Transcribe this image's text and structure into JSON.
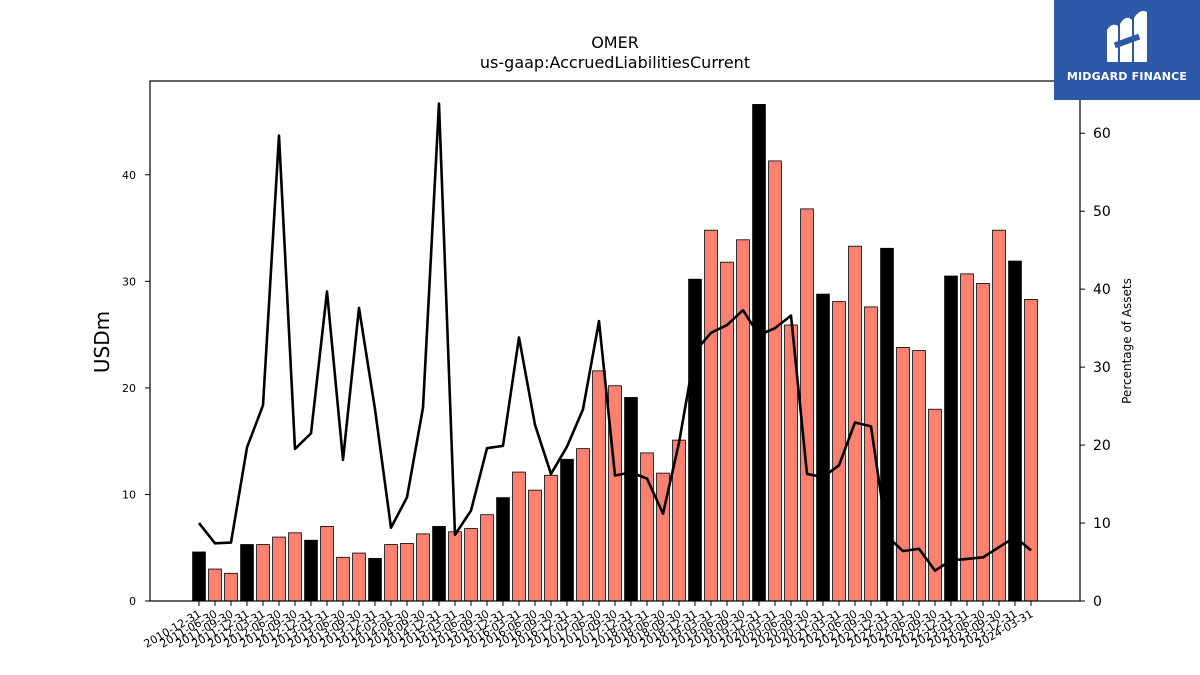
{
  "chart_data": {
    "type": "bar",
    "title": "OMER",
    "subtitle": "us-gaap:AccruedLiabilitiesCurrent",
    "ylabel": "USDm",
    "y2label": "Percentage of Assets",
    "ylim": [
      0,
      48.8
    ],
    "y2lim": [
      0,
      66.7
    ],
    "yticks": [
      0,
      10,
      20,
      30,
      40
    ],
    "y2ticks": [
      0,
      10,
      20,
      30,
      40,
      50,
      60
    ],
    "legend": "none",
    "grid": false,
    "categories": [
      "2010-12-31",
      "2011-06-30",
      "2011-09-30",
      "2011-12-31",
      "2012-03-31",
      "2012-06-30",
      "2012-09-30",
      "2012-12-31",
      "2013-03-31",
      "2013-06-30",
      "2013-09-30",
      "2013-12-31",
      "2014-03-31",
      "2014-06-30",
      "2014-09-30",
      "2014-12-31",
      "2015-03-31",
      "2015-06-30",
      "2015-09-30",
      "2015-12-31",
      "2016-03-31",
      "2016-06-30",
      "2016-09-30",
      "2016-12-31",
      "2017-03-31",
      "2017-06-30",
      "2017-09-30",
      "2017-12-31",
      "2018-03-31",
      "2018-06-30",
      "2018-09-30",
      "2018-12-31",
      "2019-03-31",
      "2019-06-30",
      "2019-09-30",
      "2019-12-31",
      "2020-03-31",
      "2020-06-30",
      "2020-09-30",
      "2020-12-31",
      "2021-03-31",
      "2021-06-30",
      "2021-09-30",
      "2021-12-31",
      "2022-03-31",
      "2022-06-30",
      "2022-09-30",
      "2022-12-31",
      "2023-03-31",
      "2023-06-30",
      "2023-09-30",
      "2023-12-31",
      "2024-03-31"
    ],
    "series": [
      {
        "kind": "bar",
        "values": [
          4.6,
          3.0,
          2.6,
          5.3,
          5.3,
          6.0,
          6.4,
          5.7,
          7.0,
          4.1,
          4.5,
          4.0,
          5.3,
          5.4,
          6.3,
          7.0,
          6.5,
          6.8,
          8.1,
          9.7,
          12.1,
          10.4,
          11.8,
          13.3,
          14.3,
          21.6,
          20.2,
          19.1,
          13.9,
          12.0,
          15.1,
          30.2,
          34.8,
          31.8,
          33.9,
          46.6,
          41.3,
          25.9,
          36.8,
          28.8,
          28.1,
          33.3,
          27.6,
          33.1,
          23.8,
          23.5,
          18.0,
          30.5,
          30.7,
          29.8,
          34.8,
          31.9,
          28.3
        ],
        "highlight": [
          true,
          false,
          false,
          true,
          false,
          false,
          false,
          true,
          false,
          false,
          false,
          true,
          false,
          false,
          false,
          true,
          false,
          false,
          false,
          true,
          false,
          false,
          false,
          true,
          false,
          false,
          false,
          true,
          false,
          false,
          false,
          true,
          false,
          false,
          false,
          true,
          false,
          false,
          false,
          true,
          false,
          false,
          false,
          true,
          false,
          false,
          false,
          true,
          false,
          false,
          false,
          true,
          false
        ]
      },
      {
        "kind": "line",
        "axis": "right",
        "values": [
          10.0,
          7.4,
          7.5,
          19.7,
          25.1,
          59.7,
          19.5,
          21.5,
          39.7,
          18.1,
          37.6,
          24.6,
          9.4,
          13.3,
          24.8,
          63.8,
          8.5,
          11.6,
          19.6,
          19.9,
          33.8,
          22.6,
          16.3,
          19.8,
          24.6,
          35.9,
          16.1,
          16.5,
          15.7,
          11.2,
          20.3,
          32.0,
          34.4,
          35.4,
          37.3,
          34.1,
          35.0,
          36.6,
          16.3,
          15.9,
          17.4,
          22.9,
          22.4,
          8.3,
          6.4,
          6.7,
          3.9,
          5.2,
          5.4,
          5.6,
          6.9,
          8.2,
          6.5
        ]
      }
    ],
    "colors": {
      "bar": "#fa8072",
      "highlight_bar": "#000000",
      "line": "#000000",
      "bar_edge": "#000000"
    }
  },
  "logo": {
    "text": "MIDGARD FINANCE"
  }
}
